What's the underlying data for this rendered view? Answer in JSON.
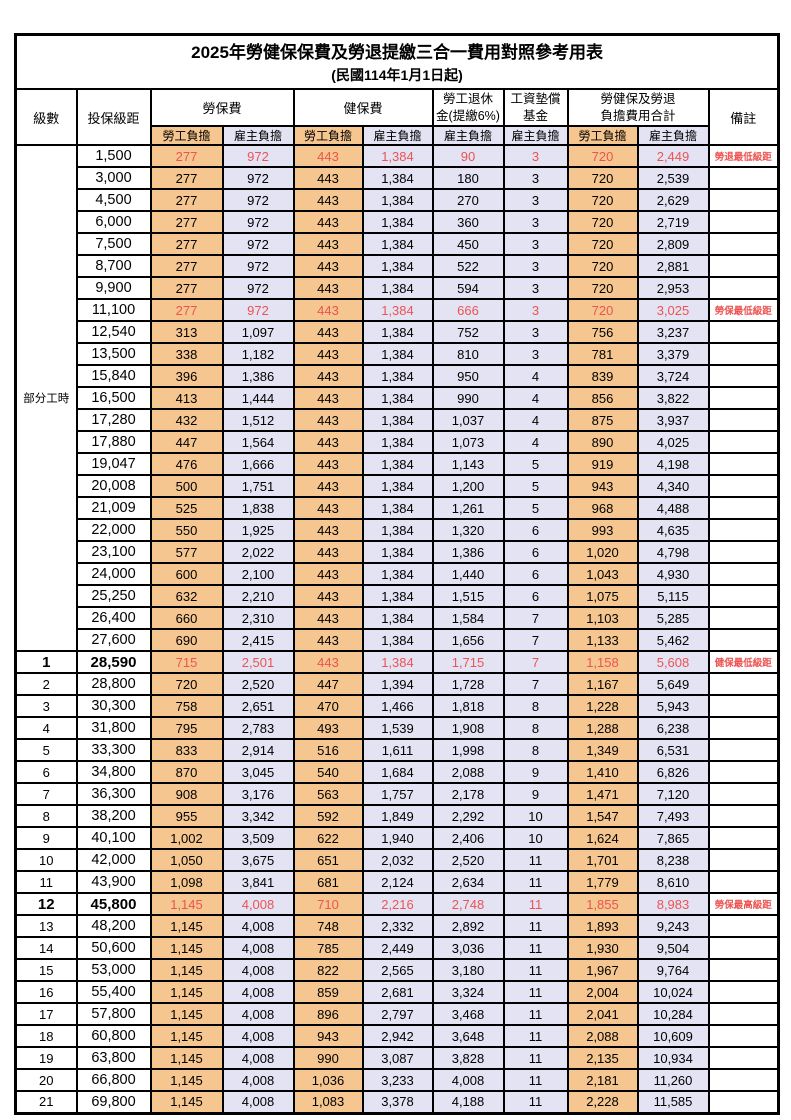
{
  "title": "2025年勞健保保費及勞退提繳三合一費用對照參考用表",
  "subtitle": "(民國114年1月1日起)",
  "header": {
    "level": "級數",
    "bracket": "投保級距",
    "labor_insurance": "勞保費",
    "health_insurance": "健保費",
    "pension_line1": "勞工退休",
    "pension_line2": "金(提繳6%)",
    "wage_fund_line1": "工資墊償",
    "wage_fund_line2": "基金",
    "total_line1": "勞健保及勞退",
    "total_line2": "負擔費用合計",
    "remark": "備註",
    "employee": "勞工負擔",
    "employer": "雇主負擔"
  },
  "part_time_label": "部分工時",
  "part_time_rowspan": 23,
  "colors": {
    "employee_bg": "#F5C68F",
    "employer_bg": "#E3E3F3",
    "highlight_red": "#EC5452",
    "border": "#000000"
  },
  "rows": [
    {
      "level": "",
      "bracket": "1,500",
      "values": [
        "277",
        "972",
        "443",
        "1,384",
        "90",
        "3",
        "720",
        "2,449"
      ],
      "remark": "勞退最低級距",
      "red": true,
      "bold": false
    },
    {
      "level": "",
      "bracket": "3,000",
      "values": [
        "277",
        "972",
        "443",
        "1,384",
        "180",
        "3",
        "720",
        "2,539"
      ],
      "remark": "",
      "red": false,
      "bold": false
    },
    {
      "level": "",
      "bracket": "4,500",
      "values": [
        "277",
        "972",
        "443",
        "1,384",
        "270",
        "3",
        "720",
        "2,629"
      ],
      "remark": "",
      "red": false,
      "bold": false
    },
    {
      "level": "",
      "bracket": "6,000",
      "values": [
        "277",
        "972",
        "443",
        "1,384",
        "360",
        "3",
        "720",
        "2,719"
      ],
      "remark": "",
      "red": false,
      "bold": false
    },
    {
      "level": "",
      "bracket": "7,500",
      "values": [
        "277",
        "972",
        "443",
        "1,384",
        "450",
        "3",
        "720",
        "2,809"
      ],
      "remark": "",
      "red": false,
      "bold": false
    },
    {
      "level": "",
      "bracket": "8,700",
      "values": [
        "277",
        "972",
        "443",
        "1,384",
        "522",
        "3",
        "720",
        "2,881"
      ],
      "remark": "",
      "red": false,
      "bold": false
    },
    {
      "level": "",
      "bracket": "9,900",
      "values": [
        "277",
        "972",
        "443",
        "1,384",
        "594",
        "3",
        "720",
        "2,953"
      ],
      "remark": "",
      "red": false,
      "bold": false
    },
    {
      "level": "",
      "bracket": "11,100",
      "values": [
        "277",
        "972",
        "443",
        "1,384",
        "666",
        "3",
        "720",
        "3,025"
      ],
      "remark": "勞保最低級距",
      "red": true,
      "bold": false
    },
    {
      "level": "",
      "bracket": "12,540",
      "values": [
        "313",
        "1,097",
        "443",
        "1,384",
        "752",
        "3",
        "756",
        "3,237"
      ],
      "remark": "",
      "red": false,
      "bold": false
    },
    {
      "level": "",
      "bracket": "13,500",
      "values": [
        "338",
        "1,182",
        "443",
        "1,384",
        "810",
        "3",
        "781",
        "3,379"
      ],
      "remark": "",
      "red": false,
      "bold": false
    },
    {
      "level": "",
      "bracket": "15,840",
      "values": [
        "396",
        "1,386",
        "443",
        "1,384",
        "950",
        "4",
        "839",
        "3,724"
      ],
      "remark": "",
      "red": false,
      "bold": false
    },
    {
      "level": "",
      "bracket": "16,500",
      "values": [
        "413",
        "1,444",
        "443",
        "1,384",
        "990",
        "4",
        "856",
        "3,822"
      ],
      "remark": "",
      "red": false,
      "bold": false
    },
    {
      "level": "",
      "bracket": "17,280",
      "values": [
        "432",
        "1,512",
        "443",
        "1,384",
        "1,037",
        "4",
        "875",
        "3,937"
      ],
      "remark": "",
      "red": false,
      "bold": false
    },
    {
      "level": "",
      "bracket": "17,880",
      "values": [
        "447",
        "1,564",
        "443",
        "1,384",
        "1,073",
        "4",
        "890",
        "4,025"
      ],
      "remark": "",
      "red": false,
      "bold": false
    },
    {
      "level": "",
      "bracket": "19,047",
      "values": [
        "476",
        "1,666",
        "443",
        "1,384",
        "1,143",
        "5",
        "919",
        "4,198"
      ],
      "remark": "",
      "red": false,
      "bold": false
    },
    {
      "level": "",
      "bracket": "20,008",
      "values": [
        "500",
        "1,751",
        "443",
        "1,384",
        "1,200",
        "5",
        "943",
        "4,340"
      ],
      "remark": "",
      "red": false,
      "bold": false
    },
    {
      "level": "",
      "bracket": "21,009",
      "values": [
        "525",
        "1,838",
        "443",
        "1,384",
        "1,261",
        "5",
        "968",
        "4,488"
      ],
      "remark": "",
      "red": false,
      "bold": false
    },
    {
      "level": "",
      "bracket": "22,000",
      "values": [
        "550",
        "1,925",
        "443",
        "1,384",
        "1,320",
        "6",
        "993",
        "4,635"
      ],
      "remark": "",
      "red": false,
      "bold": false
    },
    {
      "level": "",
      "bracket": "23,100",
      "values": [
        "577",
        "2,022",
        "443",
        "1,384",
        "1,386",
        "6",
        "1,020",
        "4,798"
      ],
      "remark": "",
      "red": false,
      "bold": false
    },
    {
      "level": "",
      "bracket": "24,000",
      "values": [
        "600",
        "2,100",
        "443",
        "1,384",
        "1,440",
        "6",
        "1,043",
        "4,930"
      ],
      "remark": "",
      "red": false,
      "bold": false
    },
    {
      "level": "",
      "bracket": "25,250",
      "values": [
        "632",
        "2,210",
        "443",
        "1,384",
        "1,515",
        "6",
        "1,075",
        "5,115"
      ],
      "remark": "",
      "red": false,
      "bold": false
    },
    {
      "level": "",
      "bracket": "26,400",
      "values": [
        "660",
        "2,310",
        "443",
        "1,384",
        "1,584",
        "7",
        "1,103",
        "5,285"
      ],
      "remark": "",
      "red": false,
      "bold": false
    },
    {
      "level": "",
      "bracket": "27,600",
      "values": [
        "690",
        "2,415",
        "443",
        "1,384",
        "1,656",
        "7",
        "1,133",
        "5,462"
      ],
      "remark": "",
      "red": false,
      "bold": false
    },
    {
      "level": "1",
      "bracket": "28,590",
      "values": [
        "715",
        "2,501",
        "443",
        "1,384",
        "1,715",
        "7",
        "1,158",
        "5,608"
      ],
      "remark": "健保最低級距",
      "red": true,
      "bold": true
    },
    {
      "level": "2",
      "bracket": "28,800",
      "values": [
        "720",
        "2,520",
        "447",
        "1,394",
        "1,728",
        "7",
        "1,167",
        "5,649"
      ],
      "remark": "",
      "red": false,
      "bold": false
    },
    {
      "level": "3",
      "bracket": "30,300",
      "values": [
        "758",
        "2,651",
        "470",
        "1,466",
        "1,818",
        "8",
        "1,228",
        "5,943"
      ],
      "remark": "",
      "red": false,
      "bold": false
    },
    {
      "level": "4",
      "bracket": "31,800",
      "values": [
        "795",
        "2,783",
        "493",
        "1,539",
        "1,908",
        "8",
        "1,288",
        "6,238"
      ],
      "remark": "",
      "red": false,
      "bold": false
    },
    {
      "level": "5",
      "bracket": "33,300",
      "values": [
        "833",
        "2,914",
        "516",
        "1,611",
        "1,998",
        "8",
        "1,349",
        "6,531"
      ],
      "remark": "",
      "red": false,
      "bold": false
    },
    {
      "level": "6",
      "bracket": "34,800",
      "values": [
        "870",
        "3,045",
        "540",
        "1,684",
        "2,088",
        "9",
        "1,410",
        "6,826"
      ],
      "remark": "",
      "red": false,
      "bold": false
    },
    {
      "level": "7",
      "bracket": "36,300",
      "values": [
        "908",
        "3,176",
        "563",
        "1,757",
        "2,178",
        "9",
        "1,471",
        "7,120"
      ],
      "remark": "",
      "red": false,
      "bold": false
    },
    {
      "level": "8",
      "bracket": "38,200",
      "values": [
        "955",
        "3,342",
        "592",
        "1,849",
        "2,292",
        "10",
        "1,547",
        "7,493"
      ],
      "remark": "",
      "red": false,
      "bold": false
    },
    {
      "level": "9",
      "bracket": "40,100",
      "values": [
        "1,002",
        "3,509",
        "622",
        "1,940",
        "2,406",
        "10",
        "1,624",
        "7,865"
      ],
      "remark": "",
      "red": false,
      "bold": false
    },
    {
      "level": "10",
      "bracket": "42,000",
      "values": [
        "1,050",
        "3,675",
        "651",
        "2,032",
        "2,520",
        "11",
        "1,701",
        "8,238"
      ],
      "remark": "",
      "red": false,
      "bold": false
    },
    {
      "level": "11",
      "bracket": "43,900",
      "values": [
        "1,098",
        "3,841",
        "681",
        "2,124",
        "2,634",
        "11",
        "1,779",
        "8,610"
      ],
      "remark": "",
      "red": false,
      "bold": false
    },
    {
      "level": "12",
      "bracket": "45,800",
      "values": [
        "1,145",
        "4,008",
        "710",
        "2,216",
        "2,748",
        "11",
        "1,855",
        "8,983"
      ],
      "remark": "勞保最高級距",
      "red": true,
      "bold": true
    },
    {
      "level": "13",
      "bracket": "48,200",
      "values": [
        "1,145",
        "4,008",
        "748",
        "2,332",
        "2,892",
        "11",
        "1,893",
        "9,243"
      ],
      "remark": "",
      "red": false,
      "bold": false
    },
    {
      "level": "14",
      "bracket": "50,600",
      "values": [
        "1,145",
        "4,008",
        "785",
        "2,449",
        "3,036",
        "11",
        "1,930",
        "9,504"
      ],
      "remark": "",
      "red": false,
      "bold": false
    },
    {
      "level": "15",
      "bracket": "53,000",
      "values": [
        "1,145",
        "4,008",
        "822",
        "2,565",
        "3,180",
        "11",
        "1,967",
        "9,764"
      ],
      "remark": "",
      "red": false,
      "bold": false
    },
    {
      "level": "16",
      "bracket": "55,400",
      "values": [
        "1,145",
        "4,008",
        "859",
        "2,681",
        "3,324",
        "11",
        "2,004",
        "10,024"
      ],
      "remark": "",
      "red": false,
      "bold": false
    },
    {
      "level": "17",
      "bracket": "57,800",
      "values": [
        "1,145",
        "4,008",
        "896",
        "2,797",
        "3,468",
        "11",
        "2,041",
        "10,284"
      ],
      "remark": "",
      "red": false,
      "bold": false
    },
    {
      "level": "18",
      "bracket": "60,800",
      "values": [
        "1,145",
        "4,008",
        "943",
        "2,942",
        "3,648",
        "11",
        "2,088",
        "10,609"
      ],
      "remark": "",
      "red": false,
      "bold": false
    },
    {
      "level": "19",
      "bracket": "63,800",
      "values": [
        "1,145",
        "4,008",
        "990",
        "3,087",
        "3,828",
        "11",
        "2,135",
        "10,934"
      ],
      "remark": "",
      "red": false,
      "bold": false
    },
    {
      "level": "20",
      "bracket": "66,800",
      "values": [
        "1,145",
        "4,008",
        "1,036",
        "3,233",
        "4,008",
        "11",
        "2,181",
        "11,260"
      ],
      "remark": "",
      "red": false,
      "bold": false
    },
    {
      "level": "21",
      "bracket": "69,800",
      "values": [
        "1,145",
        "4,008",
        "1,083",
        "3,378",
        "4,188",
        "11",
        "2,228",
        "11,585"
      ],
      "remark": "",
      "red": false,
      "bold": false
    }
  ]
}
